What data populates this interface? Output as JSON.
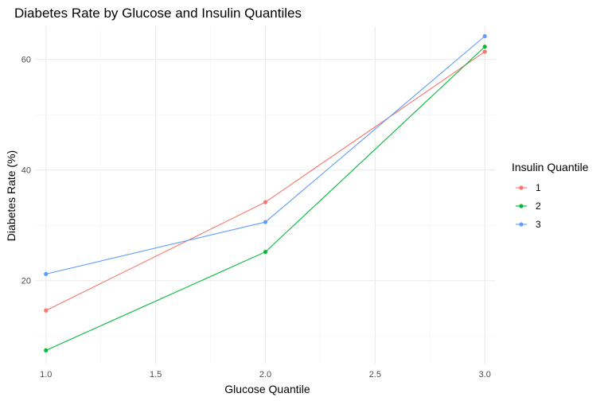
{
  "chart_data": {
    "type": "line",
    "title": "Diabetes Rate by Glucose and Insulin Quantiles",
    "xlabel": "Glucose Quantile",
    "ylabel": "Diabetes Rate (%)",
    "xlim": [
      0.95,
      3.05
    ],
    "ylim": [
      5.0,
      66.0
    ],
    "x_ticks": [
      1.0,
      1.5,
      2.0,
      2.5,
      3.0
    ],
    "x_tick_labels": [
      "1.0",
      "1.5",
      "2.0",
      "2.5",
      "3.0"
    ],
    "y_ticks": [
      20,
      40,
      60
    ],
    "y_tick_labels": [
      "20",
      "40",
      "60"
    ],
    "grid": true,
    "legend": {
      "title": "Insulin Quantile",
      "position": "right"
    },
    "x": [
      1.0,
      2.0,
      3.0
    ],
    "series": [
      {
        "name": "1",
        "color": "#F8766D",
        "values": [
          14.6,
          34.2,
          61.4
        ]
      },
      {
        "name": "2",
        "color": "#00BA38",
        "values": [
          7.4,
          25.2,
          62.3
        ]
      },
      {
        "name": "3",
        "color": "#619CFF",
        "values": [
          21.2,
          30.6,
          64.2
        ]
      }
    ]
  }
}
